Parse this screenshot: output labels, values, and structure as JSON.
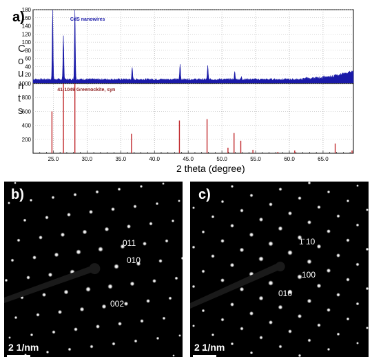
{
  "panel_a": {
    "label": "a)",
    "xlabel": "2 theta (degree)",
    "ylabel_letters": [
      "C",
      "o",
      "u",
      "n",
      "t",
      "s"
    ],
    "chart_data": [
      {
        "type": "line",
        "title": "",
        "series": [
          {
            "name": "CdS nanowires",
            "color": "#1a1aa8"
          }
        ],
        "ylim": [
          0,
          180
        ],
        "y_ticks": [
          20,
          40,
          60,
          80,
          100,
          120,
          140,
          160,
          180
        ],
        "xlim": [
          22,
          69.5
        ],
        "peaks": [
          [
            24.9,
            170
          ],
          [
            26.5,
            110
          ],
          [
            28.2,
            175
          ],
          [
            36.7,
            28
          ],
          [
            43.8,
            38
          ],
          [
            47.9,
            33
          ],
          [
            51.9,
            18
          ],
          [
            52.9,
            6
          ]
        ],
        "grid": true
      },
      {
        "type": "bar",
        "title": "",
        "series": [
          {
            "name": "41-1049 Greenockite, syn",
            "color": "#c0282c"
          }
        ],
        "ylim": [
          0,
          1000
        ],
        "y_ticks": [
          200,
          400,
          600,
          800,
          1000
        ],
        "xlim": [
          22,
          69.5
        ],
        "x_ticks": [
          "25.0",
          "30.0",
          "35.0",
          "40.0",
          "45.0",
          "50.0",
          "55.0",
          "60.0",
          "65.0"
        ],
        "x_tick_values": [
          25,
          30,
          35,
          40,
          45,
          50,
          55,
          60,
          65
        ],
        "sticks": [
          [
            24.8,
            600
          ],
          [
            26.5,
            1000
          ],
          [
            28.2,
            1000
          ],
          [
            36.6,
            280
          ],
          [
            43.7,
            470
          ],
          [
            47.8,
            490
          ],
          [
            50.9,
            80
          ],
          [
            51.8,
            290
          ],
          [
            52.8,
            180
          ],
          [
            54.6,
            50
          ],
          [
            58.3,
            20
          ],
          [
            60.8,
            40
          ],
          [
            66.8,
            140
          ],
          [
            69.3,
            40
          ]
        ],
        "grid": true
      }
    ]
  },
  "panel_b": {
    "label": "b)",
    "indices": [
      "011",
      "010",
      "002"
    ],
    "scale": "2 1/nm"
  },
  "panel_c": {
    "label": "c)",
    "indices": [
      "1̄ 10",
      "100",
      "010"
    ],
    "scale": "2 1/nm"
  }
}
